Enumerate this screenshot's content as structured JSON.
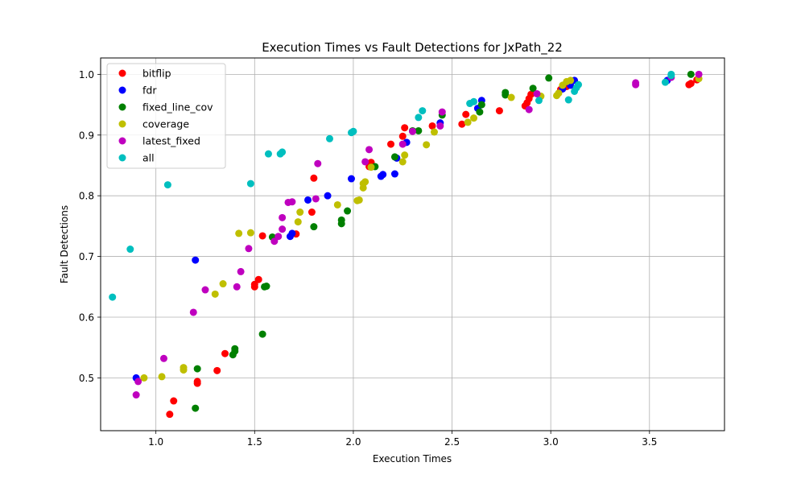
{
  "chart_data": {
    "type": "scatter",
    "title": "Execution Times vs Fault Detections for JxPath_22",
    "xlabel": "Execution Times",
    "ylabel": "Fault Detections",
    "xlim": [
      0.72,
      3.88
    ],
    "ylim": [
      0.413,
      1.027
    ],
    "xticks": [
      1.0,
      1.5,
      2.0,
      2.5,
      3.0,
      3.5
    ],
    "xtick_labels": [
      "1.0",
      "1.5",
      "2.0",
      "2.5",
      "3.0",
      "3.5"
    ],
    "yticks": [
      0.5,
      0.6,
      0.7,
      0.8,
      0.9,
      1.0
    ],
    "ytick_labels": [
      "0.5",
      "0.6",
      "0.7",
      "0.8",
      "0.9",
      "1.0"
    ],
    "grid": true,
    "legend_position": "upper-left",
    "series": [
      {
        "name": "bitflip",
        "color": "#ff0000",
        "points": [
          [
            1.07,
            0.44
          ],
          [
            1.09,
            0.462
          ],
          [
            1.21,
            0.491
          ],
          [
            1.21,
            0.494
          ],
          [
            1.31,
            0.512
          ],
          [
            1.35,
            0.54
          ],
          [
            1.5,
            0.65
          ],
          [
            1.5,
            0.654
          ],
          [
            1.52,
            0.662
          ],
          [
            1.54,
            0.734
          ],
          [
            1.71,
            0.737
          ],
          [
            1.79,
            0.773
          ],
          [
            1.8,
            0.829
          ],
          [
            2.08,
            0.848
          ],
          [
            2.09,
            0.855
          ],
          [
            2.19,
            0.885
          ],
          [
            2.25,
            0.898
          ],
          [
            2.26,
            0.912
          ],
          [
            2.4,
            0.915
          ],
          [
            2.55,
            0.918
          ],
          [
            2.57,
            0.934
          ],
          [
            2.74,
            0.94
          ],
          [
            2.87,
            0.948
          ],
          [
            2.88,
            0.953
          ],
          [
            2.89,
            0.96
          ],
          [
            2.9,
            0.967
          ],
          [
            3.05,
            0.975
          ],
          [
            3.08,
            0.98
          ],
          [
            3.7,
            0.983
          ],
          [
            3.71,
            0.985
          ],
          [
            3.74,
            0.991
          ]
        ]
      },
      {
        "name": "fdr",
        "color": "#0000ff",
        "points": [
          [
            0.9,
            0.5
          ],
          [
            1.2,
            0.694
          ],
          [
            1.68,
            0.733
          ],
          [
            1.69,
            0.738
          ],
          [
            1.77,
            0.793
          ],
          [
            1.87,
            0.8
          ],
          [
            1.99,
            0.828
          ],
          [
            2.14,
            0.832
          ],
          [
            2.15,
            0.835
          ],
          [
            2.21,
            0.836
          ],
          [
            2.22,
            0.862
          ],
          [
            2.27,
            0.888
          ],
          [
            2.44,
            0.92
          ],
          [
            2.63,
            0.944
          ],
          [
            2.65,
            0.957
          ],
          [
            3.06,
            0.976
          ],
          [
            3.1,
            0.982
          ],
          [
            3.12,
            0.99
          ],
          [
            3.59,
            0.99
          ]
        ]
      },
      {
        "name": "fixed_line_cov",
        "color": "#008000",
        "points": [
          [
            1.2,
            0.45
          ],
          [
            1.21,
            0.515
          ],
          [
            1.39,
            0.538
          ],
          [
            1.4,
            0.544
          ],
          [
            1.4,
            0.548
          ],
          [
            1.54,
            0.572
          ],
          [
            1.55,
            0.65
          ],
          [
            1.56,
            0.651
          ],
          [
            1.59,
            0.732
          ],
          [
            1.8,
            0.749
          ],
          [
            1.94,
            0.754
          ],
          [
            1.94,
            0.76
          ],
          [
            1.97,
            0.775
          ],
          [
            2.11,
            0.848
          ],
          [
            2.21,
            0.864
          ],
          [
            2.3,
            0.907
          ],
          [
            2.33,
            0.907
          ],
          [
            2.45,
            0.933
          ],
          [
            2.64,
            0.938
          ],
          [
            2.65,
            0.95
          ],
          [
            2.77,
            0.966
          ],
          [
            2.77,
            0.97
          ],
          [
            2.91,
            0.977
          ],
          [
            2.99,
            0.994
          ],
          [
            3.71,
            1.0
          ]
        ]
      },
      {
        "name": "coverage",
        "color": "#bfbf00",
        "points": [
          [
            0.94,
            0.5
          ],
          [
            1.03,
            0.502
          ],
          [
            1.14,
            0.513
          ],
          [
            1.14,
            0.517
          ],
          [
            1.3,
            0.638
          ],
          [
            1.34,
            0.655
          ],
          [
            1.42,
            0.738
          ],
          [
            1.48,
            0.739
          ],
          [
            1.72,
            0.757
          ],
          [
            1.73,
            0.773
          ],
          [
            1.92,
            0.785
          ],
          [
            2.02,
            0.792
          ],
          [
            2.03,
            0.793
          ],
          [
            2.05,
            0.813
          ],
          [
            2.05,
            0.82
          ],
          [
            2.06,
            0.823
          ],
          [
            2.09,
            0.847
          ],
          [
            2.25,
            0.856
          ],
          [
            2.26,
            0.867
          ],
          [
            2.37,
            0.884
          ],
          [
            2.41,
            0.905
          ],
          [
            2.58,
            0.921
          ],
          [
            2.61,
            0.928
          ],
          [
            2.8,
            0.962
          ],
          [
            2.95,
            0.964
          ],
          [
            3.03,
            0.965
          ],
          [
            3.04,
            0.969
          ],
          [
            3.06,
            0.982
          ],
          [
            3.08,
            0.988
          ],
          [
            3.1,
            0.99
          ],
          [
            3.75,
            0.993
          ]
        ]
      },
      {
        "name": "latest_fixed",
        "color": "#bf00bf",
        "points": [
          [
            0.9,
            0.472
          ],
          [
            0.91,
            0.494
          ],
          [
            1.04,
            0.532
          ],
          [
            1.19,
            0.608
          ],
          [
            1.25,
            0.645
          ],
          [
            1.41,
            0.65
          ],
          [
            1.43,
            0.675
          ],
          [
            1.47,
            0.713
          ],
          [
            1.6,
            0.725
          ],
          [
            1.62,
            0.733
          ],
          [
            1.64,
            0.745
          ],
          [
            1.64,
            0.764
          ],
          [
            1.67,
            0.789
          ],
          [
            1.69,
            0.79
          ],
          [
            1.81,
            0.795
          ],
          [
            1.82,
            0.853
          ],
          [
            2.06,
            0.856
          ],
          [
            2.08,
            0.876
          ],
          [
            2.25,
            0.885
          ],
          [
            2.3,
            0.906
          ],
          [
            2.44,
            0.915
          ],
          [
            2.45,
            0.938
          ],
          [
            2.89,
            0.942
          ],
          [
            2.93,
            0.968
          ],
          [
            3.43,
            0.983
          ],
          [
            3.43,
            0.986
          ],
          [
            3.61,
            0.995
          ],
          [
            3.75,
            1.0
          ]
        ]
      },
      {
        "name": "all",
        "color": "#00bfbf",
        "points": [
          [
            0.78,
            0.633
          ],
          [
            0.87,
            0.712
          ],
          [
            1.06,
            0.818
          ],
          [
            1.48,
            0.82
          ],
          [
            1.57,
            0.869
          ],
          [
            1.63,
            0.869
          ],
          [
            1.64,
            0.872
          ],
          [
            1.88,
            0.894
          ],
          [
            1.99,
            0.904
          ],
          [
            2.0,
            0.906
          ],
          [
            2.33,
            0.929
          ],
          [
            2.35,
            0.94
          ],
          [
            2.59,
            0.952
          ],
          [
            2.61,
            0.955
          ],
          [
            2.94,
            0.957
          ],
          [
            3.09,
            0.958
          ],
          [
            3.12,
            0.972
          ],
          [
            3.13,
            0.978
          ],
          [
            3.14,
            0.983
          ],
          [
            3.58,
            0.987
          ],
          [
            3.61,
            0.998
          ],
          [
            3.61,
            1.0
          ]
        ]
      }
    ]
  }
}
